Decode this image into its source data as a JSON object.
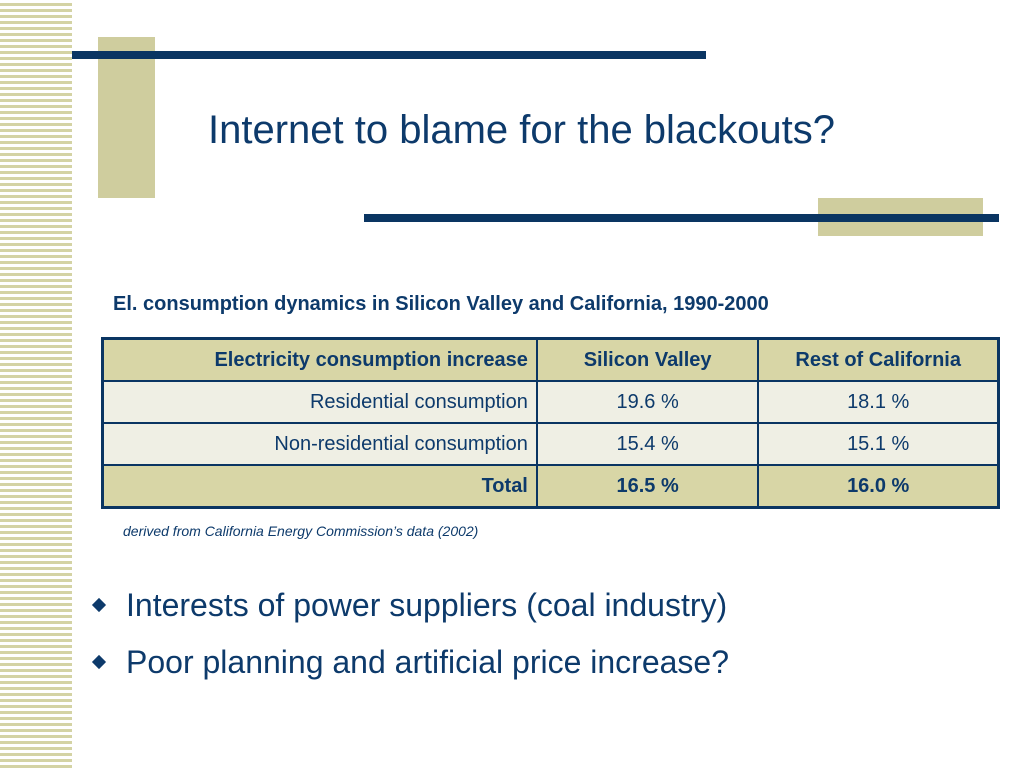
{
  "slide": {
    "title": "Internet to blame for the blackouts?",
    "table_caption": "El. consumption dynamics in Silicon Valley and California, 1990-2000",
    "table": {
      "headers": [
        "Electricity consumption increase",
        "Silicon Valley",
        "Rest of California"
      ],
      "rows": [
        [
          "Residential consumption",
          "19.6 %",
          "18.1 %"
        ],
        [
          "Non-residential consumption",
          "15.4 %",
          "15.1 %"
        ]
      ],
      "total_row": [
        "Total",
        "16.5 %",
        "16.0 %"
      ]
    },
    "source_note": "derived from California Energy Commission’s data (2002)",
    "bullets": [
      {
        "icon": "diamond-bullet-icon",
        "text": "Interests of power suppliers (coal industry)"
      },
      {
        "icon": "diamond-bullet-icon",
        "text": "Poor planning and artificial price increase?"
      }
    ]
  },
  "colors": {
    "accent_navy": "#0a3562",
    "accent_khaki": "#cfcd9e",
    "text": "#0d3a6b",
    "cell_light": "#efefe4"
  }
}
